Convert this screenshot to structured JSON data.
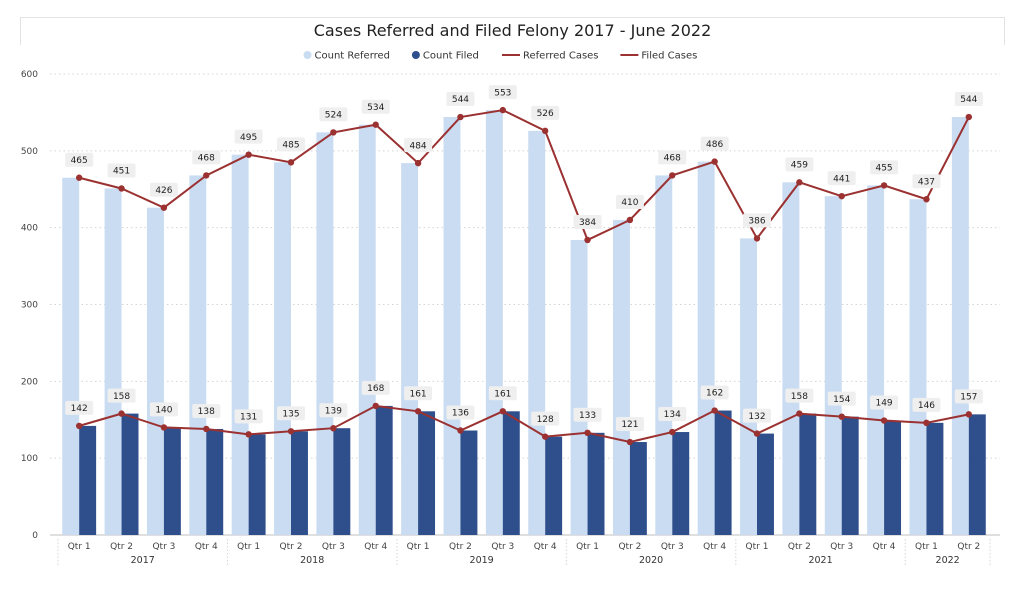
{
  "chart_data": {
    "type": "bar",
    "title": "Cases Referred and Filed Felony 2017 - June 2022",
    "legend": {
      "placement": "top-center",
      "items": [
        {
          "label": "Count Referred",
          "kind": "dot",
          "color": "#c9dcf2"
        },
        {
          "label": "Count Filed",
          "kind": "dot",
          "color": "#2e4f8c"
        },
        {
          "label": "Referred Cases",
          "kind": "line",
          "color": "#9b3131"
        },
        {
          "label": "Filed Cases",
          "kind": "line",
          "color": "#9b3131"
        }
      ]
    },
    "ylim": [
      0,
      600
    ],
    "yticks": [
      "0",
      "100",
      "200",
      "300",
      "400",
      "500",
      "600"
    ],
    "grid": true,
    "years": [
      "2017",
      "2018",
      "2019",
      "2020",
      "2021",
      "2022"
    ],
    "categories": [
      "Qtr 1",
      "Qtr 2",
      "Qtr 3",
      "Qtr 4",
      "Qtr 1",
      "Qtr 2",
      "Qtr 3",
      "Qtr 4",
      "Qtr 1",
      "Qtr 2",
      "Qtr 3",
      "Qtr 4",
      "Qtr 1",
      "Qtr 2",
      "Qtr 3",
      "Qtr 4",
      "Qtr 1",
      "Qtr 2",
      "Qtr 3",
      "Qtr 4",
      "Qtr 1",
      "Qtr 2"
    ],
    "year_of_category": [
      0,
      0,
      0,
      0,
      1,
      1,
      1,
      1,
      2,
      2,
      2,
      2,
      3,
      3,
      3,
      3,
      4,
      4,
      4,
      4,
      5,
      5
    ],
    "series": [
      {
        "name": "Count Referred",
        "kind": "bar",
        "color": "#c9dcf2",
        "values": [
          465,
          451,
          426,
          468,
          495,
          485,
          524,
          534,
          484,
          544,
          553,
          526,
          384,
          410,
          468,
          486,
          386,
          459,
          441,
          455,
          437,
          544
        ]
      },
      {
        "name": "Count Filed",
        "kind": "bar",
        "color": "#2e4f8c",
        "values": [
          142,
          158,
          140,
          138,
          131,
          135,
          139,
          168,
          161,
          136,
          161,
          128,
          133,
          121,
          134,
          162,
          132,
          158,
          154,
          149,
          146,
          157
        ]
      },
      {
        "name": "Referred Cases",
        "kind": "line",
        "color": "#9b3131",
        "values": [
          465,
          451,
          426,
          468,
          495,
          485,
          524,
          534,
          484,
          544,
          553,
          526,
          384,
          410,
          468,
          486,
          386,
          459,
          441,
          455,
          437,
          544
        ]
      },
      {
        "name": "Filed Cases",
        "kind": "line",
        "color": "#9b3131",
        "values": [
          142,
          158,
          140,
          138,
          131,
          135,
          139,
          168,
          161,
          136,
          161,
          128,
          133,
          121,
          134,
          162,
          132,
          158,
          154,
          149,
          146,
          157
        ]
      }
    ]
  }
}
